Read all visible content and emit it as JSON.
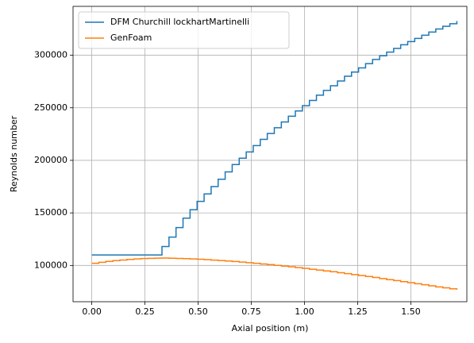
{
  "chart_data": {
    "type": "line",
    "drawstyle": "steps-post",
    "xlabel": "Axial position (m)",
    "ylabel": "Reynolds number",
    "x": [
      0,
      0.033,
      0.066,
      0.099,
      0.132,
      0.165,
      0.198,
      0.231,
      0.264,
      0.297,
      0.33,
      0.363,
      0.396,
      0.429,
      0.462,
      0.495,
      0.528,
      0.561,
      0.594,
      0.627,
      0.66,
      0.693,
      0.726,
      0.759,
      0.792,
      0.825,
      0.858,
      0.891,
      0.924,
      0.957,
      0.99,
      1.023,
      1.056,
      1.089,
      1.122,
      1.155,
      1.188,
      1.221,
      1.254,
      1.287,
      1.32,
      1.353,
      1.386,
      1.419,
      1.452,
      1.485,
      1.518,
      1.551,
      1.584,
      1.617,
      1.65,
      1.683,
      1.716
    ],
    "series": [
      {
        "name": "DFM Churchill lockhartMartinelli",
        "color": "#1f77b4",
        "values": [
          110000,
          110000,
          110000,
          110000,
          110000,
          110000,
          110000,
          110000,
          110000,
          110000,
          118000,
          127000,
          136000,
          145000,
          153000,
          161000,
          168000,
          175000,
          182000,
          189000,
          196000,
          202000,
          208000,
          214000,
          220000,
          225500,
          231000,
          236500,
          242000,
          247000,
          252000,
          257000,
          262000,
          266500,
          271000,
          275500,
          280000,
          284000,
          288000,
          292000,
          296000,
          299500,
          303000,
          306500,
          310000,
          313000,
          316000,
          319000,
          322000,
          325000,
          327500,
          330000,
          332500
        ]
      },
      {
        "name": "GenFoam",
        "color": "#ff7f0e",
        "values": [
          102000,
          103000,
          103800,
          104550,
          105200,
          105750,
          106200,
          106550,
          106800,
          106950,
          107000,
          106900,
          106700,
          106500,
          106200,
          105900,
          105500,
          105100,
          104700,
          104200,
          103700,
          103200,
          102600,
          102000,
          101400,
          100800,
          100100,
          99400,
          98700,
          98000,
          97200,
          96400,
          95600,
          94800,
          94000,
          93100,
          92200,
          91300,
          90400,
          89500,
          88500,
          87500,
          86500,
          85600,
          84600,
          83600,
          82600,
          81600,
          80600,
          79600,
          78700,
          77800,
          76900
        ]
      }
    ],
    "xlim": [
      -0.088,
      1.763
    ],
    "ylim": [
      65500,
      346500
    ],
    "xticks": [
      {
        "value": 0,
        "label": "0.00"
      },
      {
        "value": 0.25,
        "label": "0.25"
      },
      {
        "value": 0.5,
        "label": "0.50"
      },
      {
        "value": 0.75,
        "label": "0.75"
      },
      {
        "value": 1,
        "label": "1.00"
      },
      {
        "value": 1.25,
        "label": "1.25"
      },
      {
        "value": 1.5,
        "label": "1.50"
      }
    ],
    "yticks": [
      100000,
      150000,
      200000,
      250000,
      300000
    ],
    "grid": true,
    "legend": "upper left"
  }
}
